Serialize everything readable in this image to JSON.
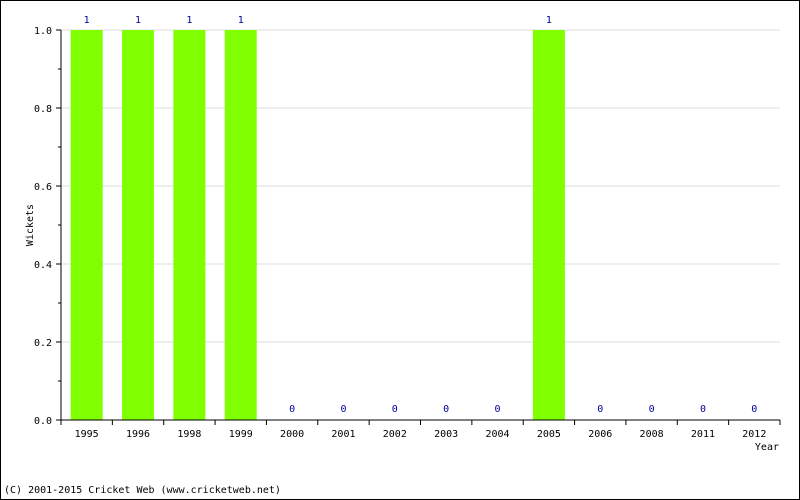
{
  "chart_data": {
    "type": "bar",
    "categories": [
      "1995",
      "1996",
      "1998",
      "1999",
      "2000",
      "2001",
      "2002",
      "2003",
      "2004",
      "2005",
      "2006",
      "2008",
      "2011",
      "2012"
    ],
    "values": [
      1,
      1,
      1,
      1,
      0,
      0,
      0,
      0,
      0,
      1,
      0,
      0,
      0,
      0
    ],
    "data_labels": [
      "1",
      "1",
      "1",
      "1",
      "0",
      "0",
      "0",
      "0",
      "0",
      "1",
      "0",
      "0",
      "0",
      "0"
    ],
    "ylim": [
      0,
      1.0
    ],
    "yticks": [
      "0.0",
      "0.2",
      "0.4",
      "0.6",
      "0.8",
      "1.0"
    ],
    "xlabel": "Year",
    "ylabel": "Wickets",
    "grid": true,
    "bar_color": "#80ff00",
    "label_color": "#000099"
  },
  "footer": {
    "copyright": "(C) 2001-2015 Cricket Web (www.cricketweb.net)"
  }
}
